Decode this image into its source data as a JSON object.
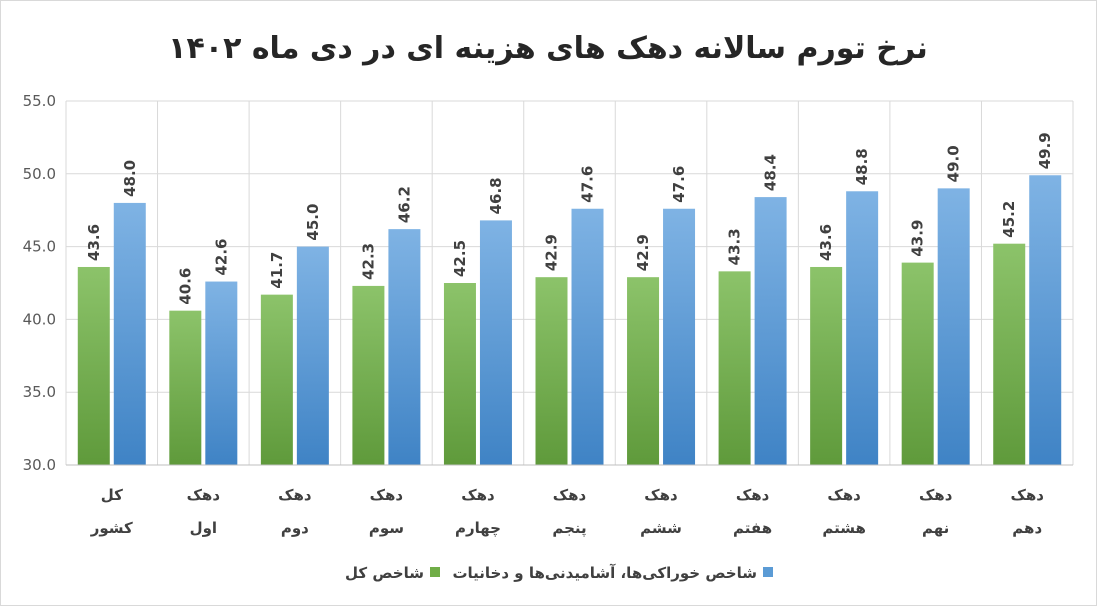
{
  "chart_data": {
    "type": "bar",
    "title": "نرخ تورم سالانه  دهک های هزینه ای در دی ماه ۱۴۰۲",
    "categories": [
      [
        "کل",
        "کشور"
      ],
      [
        "دهک",
        "اول"
      ],
      [
        "دهک",
        "دوم"
      ],
      [
        "دهک",
        "سوم"
      ],
      [
        "دهک",
        "چهارم"
      ],
      [
        "دهک",
        "پنجم"
      ],
      [
        "دهک",
        "ششم"
      ],
      [
        "دهک",
        "هفتم"
      ],
      [
        "دهک",
        "هشتم"
      ],
      [
        "دهک",
        "نهم"
      ],
      [
        "دهک",
        "دهم"
      ]
    ],
    "series": [
      {
        "name": "شاخص کل",
        "color": "#70ad47",
        "colorLight": "#8cc36a",
        "colorDark": "#5f9a3b",
        "values": [
          43.6,
          40.6,
          41.7,
          42.3,
          42.5,
          42.9,
          42.9,
          43.3,
          43.6,
          43.9,
          45.2
        ]
      },
      {
        "name": "شاخص خوراکی‌ها، آشامیدنی‌ها و دخانیات",
        "color": "#5b9bd5",
        "colorLight": "#7fb3e4",
        "colorDark": "#3f83c5",
        "values": [
          48.0,
          42.6,
          45.0,
          46.2,
          46.8,
          47.6,
          47.6,
          48.4,
          48.8,
          49.0,
          49.9
        ]
      }
    ],
    "yticks": [
      "30.0",
      "35.0",
      "40.0",
      "45.0",
      "50.0",
      "55.0"
    ],
    "ylim": [
      30,
      55
    ],
    "grid": true,
    "legend_position": "bottom",
    "data_labels_rotated": true
  }
}
